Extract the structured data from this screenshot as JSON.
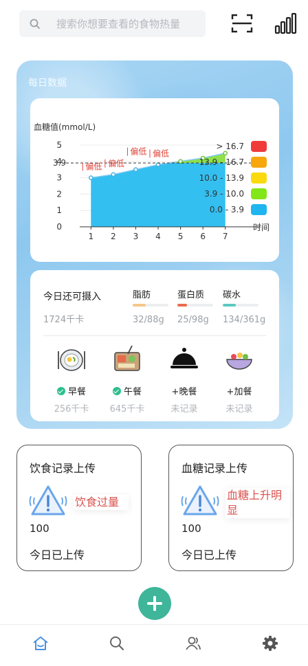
{
  "search": {
    "placeholder": "搜索你想要查看的食物热量"
  },
  "panel": {
    "title": "每日数据"
  },
  "chart_data": {
    "type": "area",
    "ylabel": "血糖值(mmol/L)",
    "xlabel": "时间",
    "x": [
      1,
      2,
      3,
      4,
      5,
      6,
      7
    ],
    "y": [
      3.0,
      3.2,
      3.5,
      3.8,
      4.0,
      4.2,
      4.5
    ],
    "ylim": [
      0,
      5
    ],
    "yticks": [
      0,
      1,
      2,
      3,
      4,
      5
    ],
    "reference_line": {
      "value": 3.9,
      "label": "3.9"
    },
    "annotations": [
      {
        "x": 1,
        "text": "偏低"
      },
      {
        "x": 2,
        "text": "偏低"
      },
      {
        "x": 3,
        "text": "偏低"
      },
      {
        "x": 4,
        "text": "偏低"
      }
    ],
    "legend": [
      {
        "label": "> 16.7",
        "color": "#f03a3a"
      },
      {
        "label": "13.9 - 16.7",
        "color": "#f7a60c"
      },
      {
        "label": "10.0 - 13.9",
        "color": "#fad90f"
      },
      {
        "label": "3.9 - 10.0",
        "color": "#82e619"
      },
      {
        "label": "0.0 - 3.9",
        "color": "#1fb6ef"
      }
    ],
    "area_colors": {
      "below": "#33bff0",
      "above": "#8fe04a"
    }
  },
  "intake": {
    "title": "今日还可摄入",
    "value": "1724千卡",
    "macros": [
      {
        "name": "脂肪",
        "value": "32/88g",
        "fraction": 0.36,
        "color": "#f5c78a"
      },
      {
        "name": "蛋白质",
        "value": "25/98g",
        "fraction": 0.26,
        "color": "#ea6a4e"
      },
      {
        "name": "碳水",
        "value": "134/361g",
        "fraction": 0.37,
        "color": "#5cc9c1"
      }
    ]
  },
  "meals": [
    {
      "name": "早餐",
      "sub": "256千卡",
      "done": true,
      "icon": "breakfast-plate-icon"
    },
    {
      "name": "午餐",
      "sub": "645千卡",
      "done": true,
      "icon": "lunch-tray-icon"
    },
    {
      "name": "+晚餐",
      "sub": "未记录",
      "done": false,
      "icon": "dinner-cloche-icon"
    },
    {
      "name": "+加餐",
      "sub": "未记录",
      "done": false,
      "icon": "snack-bowl-icon"
    }
  ],
  "uploads": [
    {
      "title": "饮食记录上传",
      "warning": "饮食过量",
      "count": "100",
      "status": "今日已上传"
    },
    {
      "title": "血糖记录上传",
      "warning": "血糖上升明显",
      "count": "100",
      "status": "今日已上传"
    }
  ],
  "colors": {
    "accent": "#3fb59a",
    "nav_active": "#4a90e2",
    "warning": "#d9534f"
  },
  "nav": [
    "home-icon",
    "search-icon",
    "user-icon",
    "settings-icon"
  ]
}
